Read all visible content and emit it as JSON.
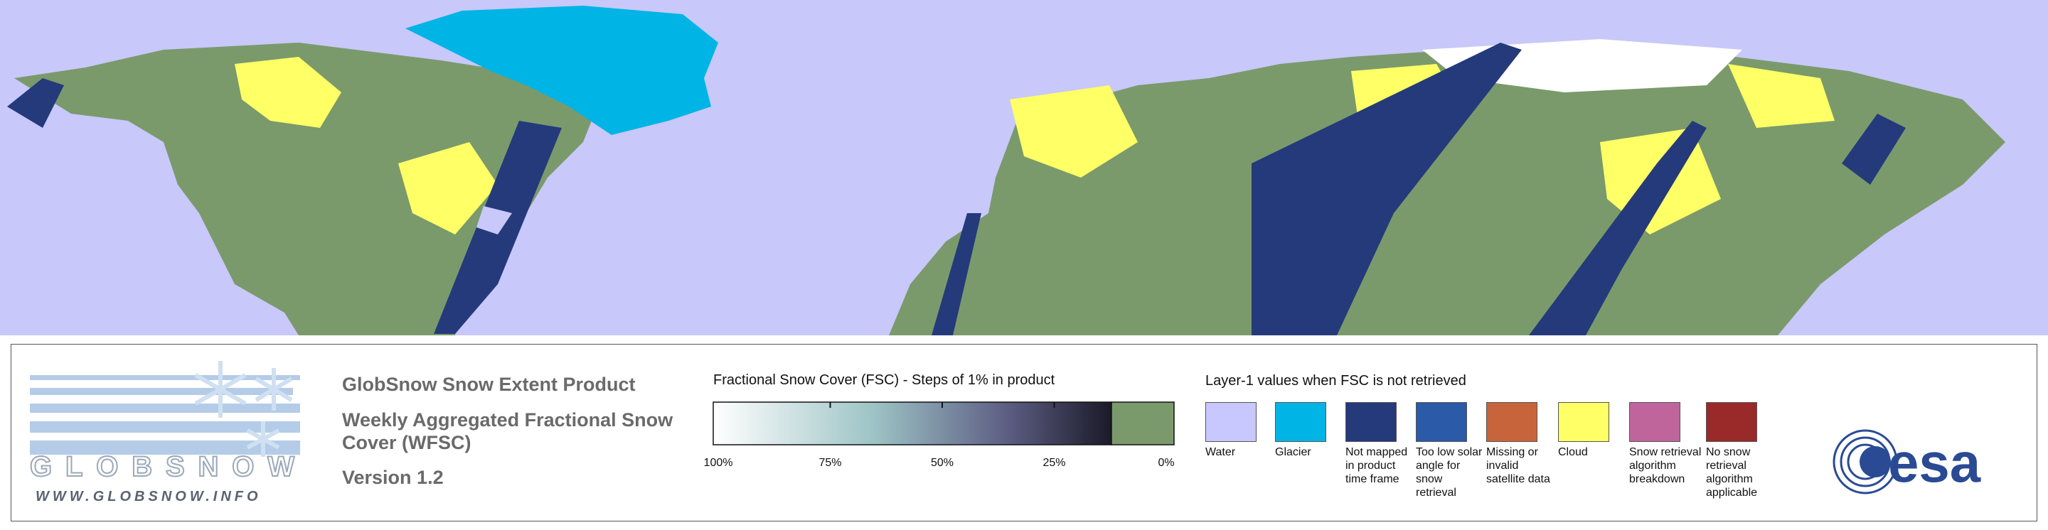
{
  "header": {
    "title": "GlobSnow Snow Extent Product",
    "subtitle_lines": [
      "Weekly Aggregated Fractional Snow",
      "Cover (WFSC)"
    ],
    "version": "Version 1.2"
  },
  "logo": {
    "name": "GLOBSNOW",
    "url": "WWW.GLOBSNOW.INFO"
  },
  "fsc_scale": {
    "title": "Fractional Snow Cover (FSC) - Steps of 1% in product",
    "ticks": [
      {
        "value": 100,
        "label": "100%"
      },
      {
        "value": 75,
        "label": "75%"
      },
      {
        "value": 50,
        "label": "50%"
      },
      {
        "value": 25,
        "label": "25%"
      },
      {
        "value": 0,
        "label": "0%"
      }
    ]
  },
  "layer1": {
    "title": "Layer-1 values when FSC is not retrieved",
    "items": [
      {
        "label": "Water",
        "color": "#c8c8ff"
      },
      {
        "label": "Glacier",
        "color": "#00b4e6"
      },
      {
        "label": "Not mapped in product time frame",
        "color": "#253a7a"
      },
      {
        "label": "Too low solar angle for snow retrieval",
        "color": "#2a5aa8"
      },
      {
        "label": "Missing or invalid satellite data",
        "color": "#c8643c"
      },
      {
        "label": "Cloud",
        "color": "#ffff66"
      },
      {
        "label": "Snow retrieval algorithm breakdown",
        "color": "#c0649c"
      },
      {
        "label": "No snow retrieval algorithm applicable",
        "color": "#9a2a2a"
      }
    ]
  },
  "agency": "esa"
}
